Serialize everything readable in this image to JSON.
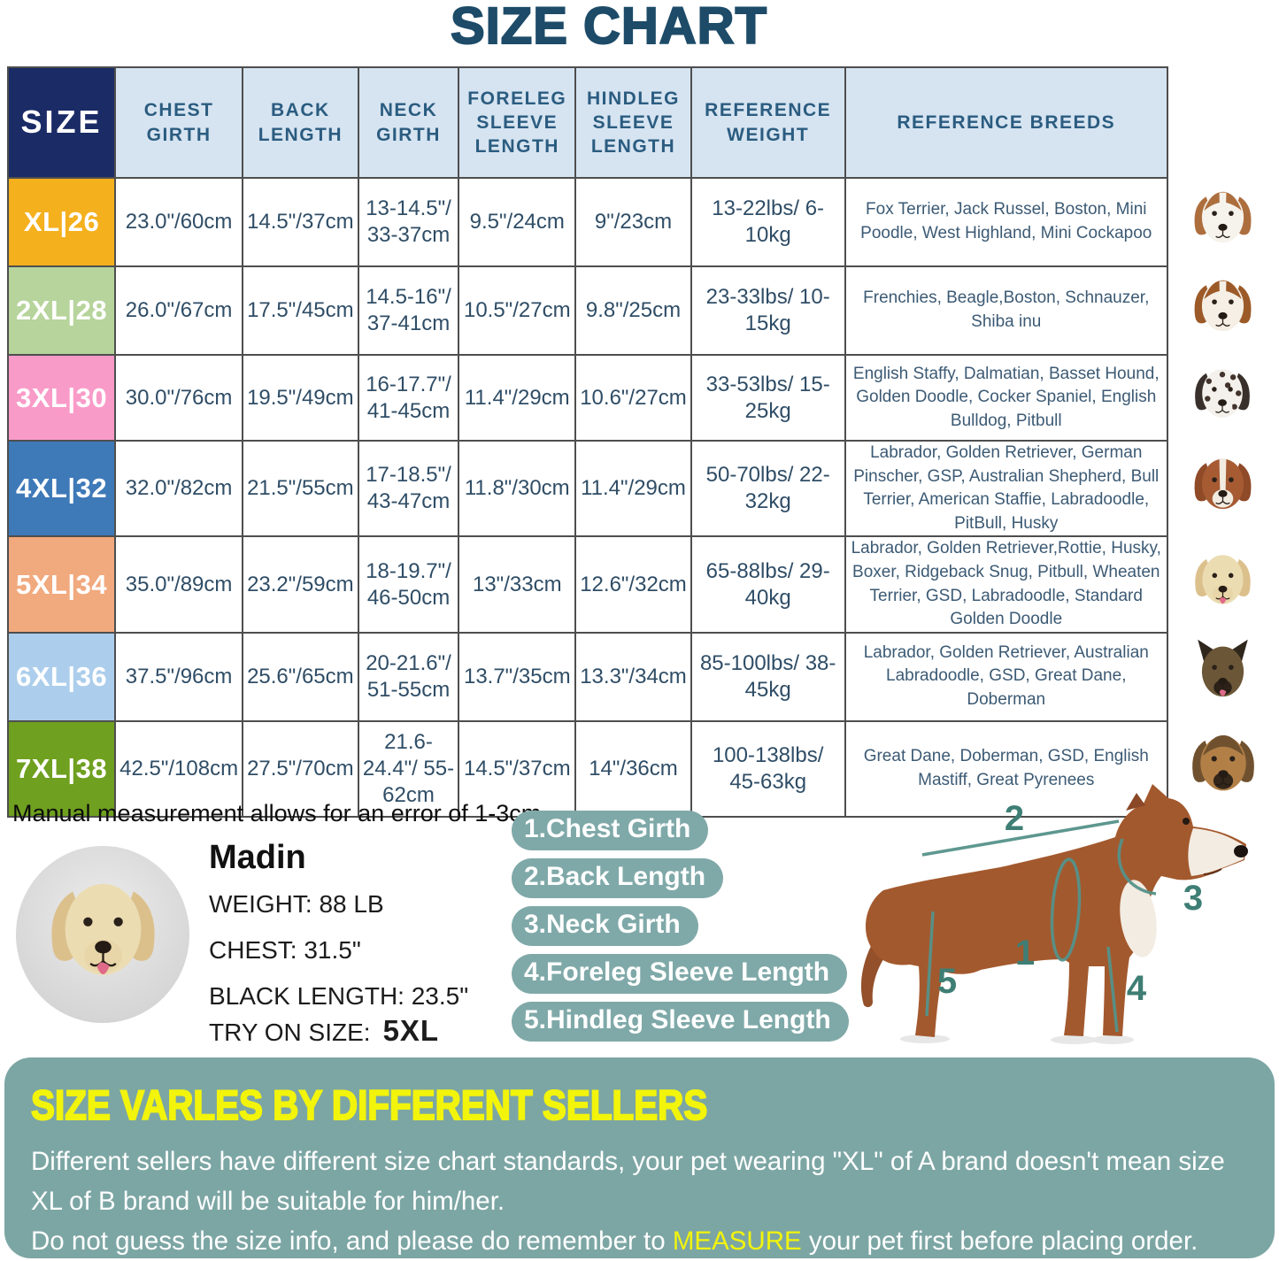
{
  "title": "SIZE CHART",
  "note": "Manual measurement allows for an error of 1-3cm",
  "table": {
    "headers": [
      "SIZE",
      "CHEST GIRTH",
      "BACK LENGTH",
      "NECK GIRTH",
      "FORELEG SLEEVE LENGTH",
      "HINDLEG SLEEVE LENGTH",
      "REFERENCE WEIGHT",
      "REFERENCE BREEDS"
    ],
    "rows": [
      {
        "size": "XL|26",
        "color": "#F5B01E",
        "chest": "23.0\"/60cm",
        "back": "14.5\"/37cm",
        "neck": "13-14.5\"/ 33-37cm",
        "foreleg": "9.5\"/24cm",
        "hindleg": "9\"/23cm",
        "weight": "13-22lbs/ 6-10kg",
        "breeds": "Fox Terrier, Jack Russel, Boston, Mini Poodle, West Highland, Mini Cockapoo",
        "photo": {
          "name": "jack-russell-photo",
          "ear": "#ad6e3e",
          "head": "#f6f3ec",
          "muzzle": "#f6f3ec",
          "crown": true,
          "blaze": true
        }
      },
      {
        "size": "2XL|28",
        "color": "#B6D49B",
        "chest": "26.0\"/67cm",
        "back": "17.5\"/45cm",
        "neck": "14.5-16\"/ 37-41cm",
        "foreleg": "10.5\"/27cm",
        "hindleg": "9.8\"/25cm",
        "weight": "23-33lbs/ 10-15kg",
        "breeds": "Frenchies, Beagle,Boston, Schnauzer, Shiba inu",
        "photo": {
          "name": "beagle-photo",
          "ear": "#9c5a28",
          "head": "#f5efe5",
          "muzzle": "#f5efe5",
          "crown": true,
          "blaze": true
        }
      },
      {
        "size": "3XL|30",
        "color": "#F99BC8",
        "chest": "30.0\"/76cm",
        "back": "19.5\"/49cm",
        "neck": "16-17.7\"/ 41-45cm",
        "foreleg": "11.4\"/29cm",
        "hindleg": "10.6\"/27cm",
        "weight": "33-53lbs/ 15-25kg",
        "breeds": "English Staffy, Dalmatian, Basset Hound, Golden Doodle, Cocker Spaniel, English Bulldog, Pitbull",
        "photo": {
          "name": "dalmatian-photo",
          "ear": "#39302b",
          "head": "#f4f1ec",
          "muzzle": "#f4f1ec",
          "spots": true
        }
      },
      {
        "size": "4XL|32",
        "color": "#3E79B8",
        "chest": "32.0\"/82cm",
        "back": "21.5\"/55cm",
        "neck": "17-18.5\"/ 43-47cm",
        "foreleg": "11.8\"/30cm",
        "hindleg": "11.4\"/29cm",
        "weight": "50-70lbs/ 22-32kg",
        "breeds": "Labrador, Golden Retriever, German Pinscher, GSP, Australian Shepherd, Bull Terrier, American Staffie, Labradoodle, PitBull, Husky",
        "photo": {
          "name": "amstaff-photo",
          "ear": "#8f4a28",
          "head": "#a65b33",
          "muzzle": "#f2ebe0",
          "blaze": true
        }
      },
      {
        "size": "5XL|34",
        "color": "#F1A97E",
        "chest": "35.0\"/89cm",
        "back": "23.2\"/59cm",
        "neck": "18-19.7\"/ 46-50cm",
        "foreleg": "13\"/33cm",
        "hindleg": "12.6\"/32cm",
        "weight": "65-88lbs/ 29-40kg",
        "breeds": "Labrador, Golden Retriever,Rottie, Husky, Boxer, Ridgeback Snug, Pitbull, Wheaten Terrier, GSD, Labradoodle,  Standard Golden Doodle",
        "photo": {
          "name": "labrador-photo",
          "ear": "#dcc08c",
          "head": "#ebdcb2",
          "muzzle": "#e8d5a8",
          "tongue": true
        }
      },
      {
        "size": "6XL|36",
        "color": "#ACCEEC",
        "chest": "37.5\"/96cm",
        "back": "25.6\"/65cm",
        "neck": "20-21.6\"/ 51-55cm",
        "foreleg": "13.7\"/35cm",
        "hindleg": "13.3\"/34cm",
        "weight": "85-100lbs/ 38-45kg",
        "breeds": "Labrador, Golden Retriever, Australian Labradoodle, GSD, Great Dane, Doberman",
        "photo": {
          "name": "german-shepherd-photo",
          "ear": "#2f261c",
          "head": "#6b5637",
          "muzzle": "#6b5637",
          "mask": "#2b2117",
          "erect": true,
          "tongue": true
        }
      },
      {
        "size": "7XL|38",
        "color": "#6FA01F",
        "chest": "42.5\"/108cm",
        "back": "27.5\"/70cm",
        "neck": "21.6-24.4\"/ 55-62cm",
        "foreleg": "14.5\"/37cm",
        "hindleg": "14\"/36cm",
        "weight": "100-138lbs/ 45-63kg",
        "breeds": "Great Dane, Doberman, GSD, English Mastiff, Great Pyrenees",
        "photo": {
          "name": "great-dane-photo",
          "ear": "#70512f",
          "head": "#b28047",
          "muzzle": "#b28047",
          "mask": "#33261a",
          "crown": true
        }
      }
    ]
  },
  "model": {
    "name": "Madin",
    "lines": [
      "WEIGHT: 88 LB",
      "CHEST: 31.5\"",
      "BLACK LENGTH: 23.5\""
    ],
    "try_on_label": "TRY ON SIZE:",
    "try_on_size": "5XL",
    "photo": "labrador-photo"
  },
  "measure_labels": [
    "1.Chest Girth",
    "2.Back Length",
    "3.Neck Girth",
    "4.Foreleg Sleeve Length",
    "5.Hindleg Sleeve Length"
  ],
  "diagram": {
    "labels": [
      "1",
      "2",
      "3",
      "4",
      "5"
    ],
    "line_color": "#55928A"
  },
  "warning": {
    "heading": "SIZE VARLES BY DIFFERENT SELLERS",
    "body": "Different sellers have different size chart standards, your pet wearing \"XL\" of A brand doesn't mean size XL of B brand will be suitable for him/her.",
    "measure_pre": "Do not guess the size info, and please do remember to ",
    "measure_word": "MEASURE",
    "measure_post": " your pet first before placing order.",
    "panel_color": "#7CA6A4",
    "heading_color": "#F2F40B"
  }
}
